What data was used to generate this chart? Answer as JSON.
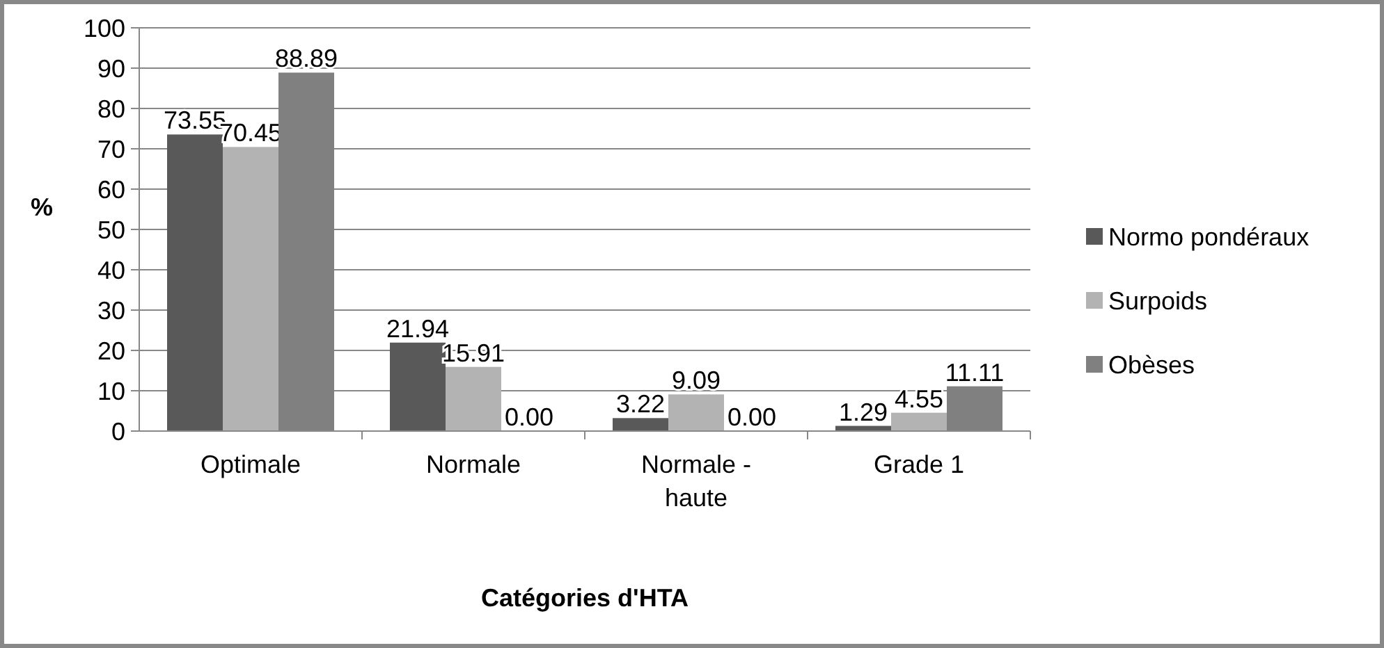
{
  "chart_data": {
    "type": "bar",
    "xlabel": "Catégories d'HTA",
    "ylabel": "%",
    "categories": [
      "Optimale",
      "Normale",
      "Normale - haute",
      "Grade 1"
    ],
    "series": [
      {
        "name": "Normo pondéraux",
        "color": "#595959",
        "values": [
          73.55,
          21.94,
          3.22,
          1.29
        ],
        "value_labels": [
          "73.55",
          "21.94",
          "3.22",
          "1.29"
        ]
      },
      {
        "name": "Surpoids",
        "color": "#b3b3b3",
        "values": [
          70.45,
          15.91,
          9.09,
          4.55
        ],
        "value_labels": [
          "70.45",
          "15.91",
          "9.09",
          "4.55"
        ]
      },
      {
        "name": "Obèses",
        "color": "#808080",
        "values": [
          88.89,
          0,
          0,
          11.11
        ],
        "value_labels": [
          "88.89",
          "0.00",
          "0.00",
          "11.11"
        ]
      }
    ],
    "ylim": [
      0,
      100
    ],
    "yticks": [
      0,
      10,
      20,
      30,
      40,
      50,
      60,
      70,
      80,
      90,
      100
    ],
    "grid": "y",
    "legend": "right"
  }
}
